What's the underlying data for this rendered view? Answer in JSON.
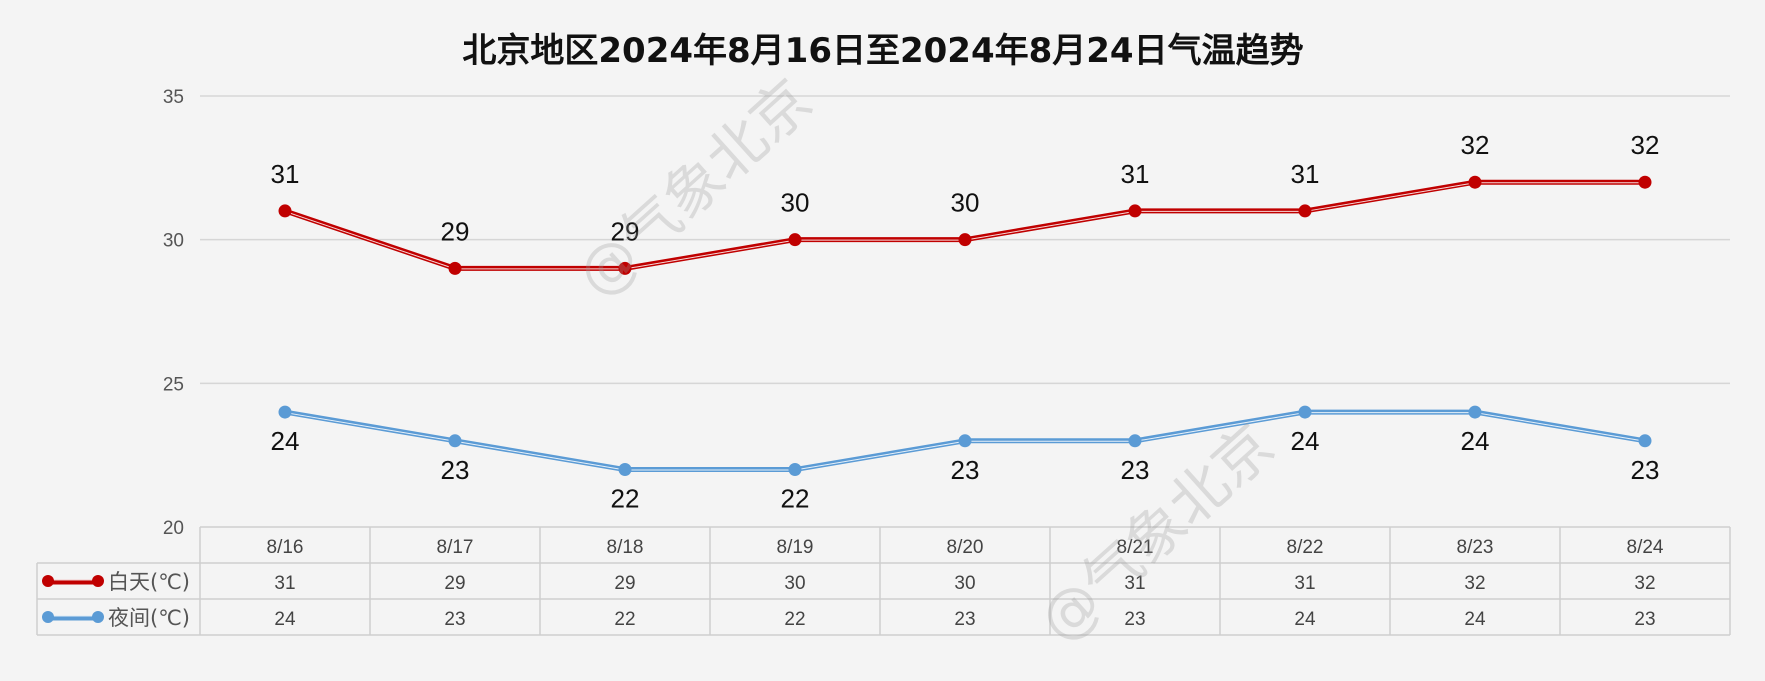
{
  "chart_data": {
    "type": "line",
    "title": "北京地区2024年8月16日至2024年8月24日气温趋势",
    "categories": [
      "8/16",
      "8/17",
      "8/18",
      "8/19",
      "8/20",
      "8/21",
      "8/22",
      "8/23",
      "8/24"
    ],
    "series": [
      {
        "name": "白天(℃)",
        "color": "#c00000",
        "values": [
          31,
          29,
          29,
          30,
          30,
          31,
          31,
          32,
          32
        ]
      },
      {
        "name": "夜间(℃)",
        "color": "#5b9bd5",
        "values": [
          24,
          23,
          22,
          22,
          23,
          23,
          24,
          24,
          23
        ]
      }
    ],
    "ylim": [
      20,
      35
    ],
    "yticks": [
      20,
      25,
      30,
      35
    ],
    "grid": true,
    "legend": "data-table",
    "data_labels": true
  },
  "watermarks": [
    "@气象北京",
    "@气象北京"
  ]
}
